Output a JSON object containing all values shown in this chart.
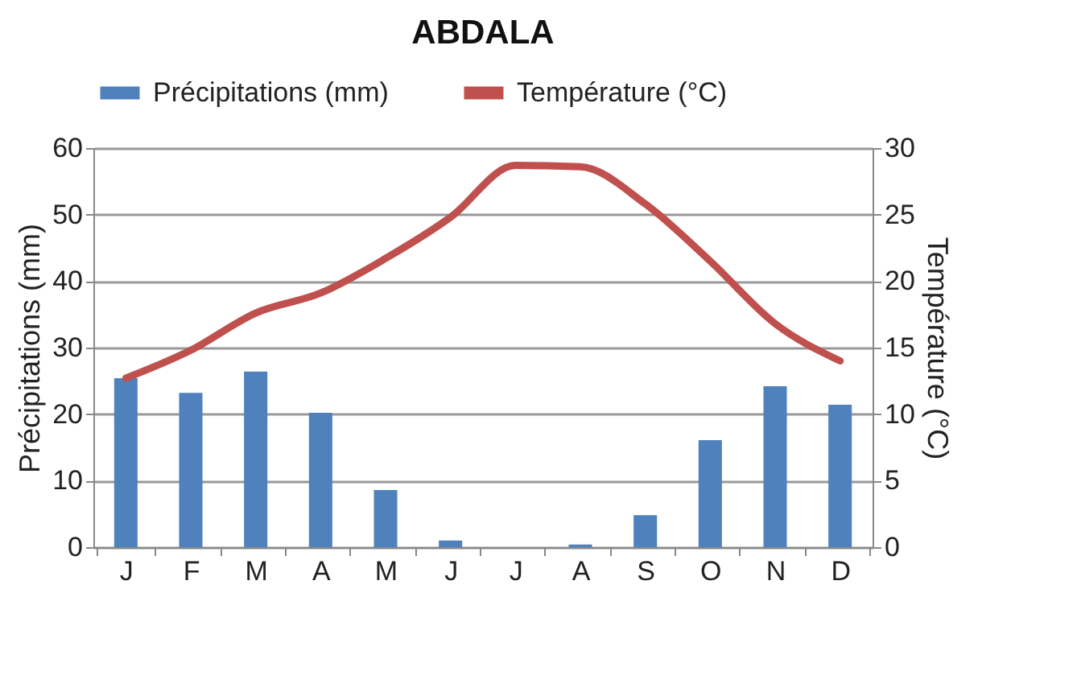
{
  "chart_data": {
    "type": "bar",
    "title": "ABDALA",
    "categories": [
      "J",
      "F",
      "M",
      "A",
      "M",
      "J",
      "J",
      "A",
      "S",
      "O",
      "N",
      "D"
    ],
    "ylabel": "Précipitations (mm)",
    "y2label": "Température (°C)",
    "series": [
      {
        "name": "Précipitations (mm)",
        "color": "#4f81bd",
        "values": [
          25.4,
          23.2,
          26.4,
          20.2,
          8.6,
          1.0,
          0,
          0.4,
          4.8,
          16.1,
          24.2,
          21.4
        ]
      },
      {
        "name": "Température (°C)",
        "type": "line",
        "axis": "y2",
        "color": "#c0504d",
        "values": [
          12.7,
          14.8,
          17.6,
          19.1,
          21.7,
          24.8,
          28.7,
          28.6,
          25.8,
          21.5,
          16.8,
          14.0
        ]
      }
    ],
    "ylim": [
      0,
      60
    ],
    "yticks": [
      0,
      10,
      20,
      30,
      40,
      50,
      60
    ],
    "y2lim": [
      0,
      30
    ],
    "y2ticks": [
      0,
      5,
      10,
      15,
      20,
      25,
      30
    ],
    "grid": "y",
    "legend": "top",
    "marker": "none",
    "line_style": "solid"
  }
}
